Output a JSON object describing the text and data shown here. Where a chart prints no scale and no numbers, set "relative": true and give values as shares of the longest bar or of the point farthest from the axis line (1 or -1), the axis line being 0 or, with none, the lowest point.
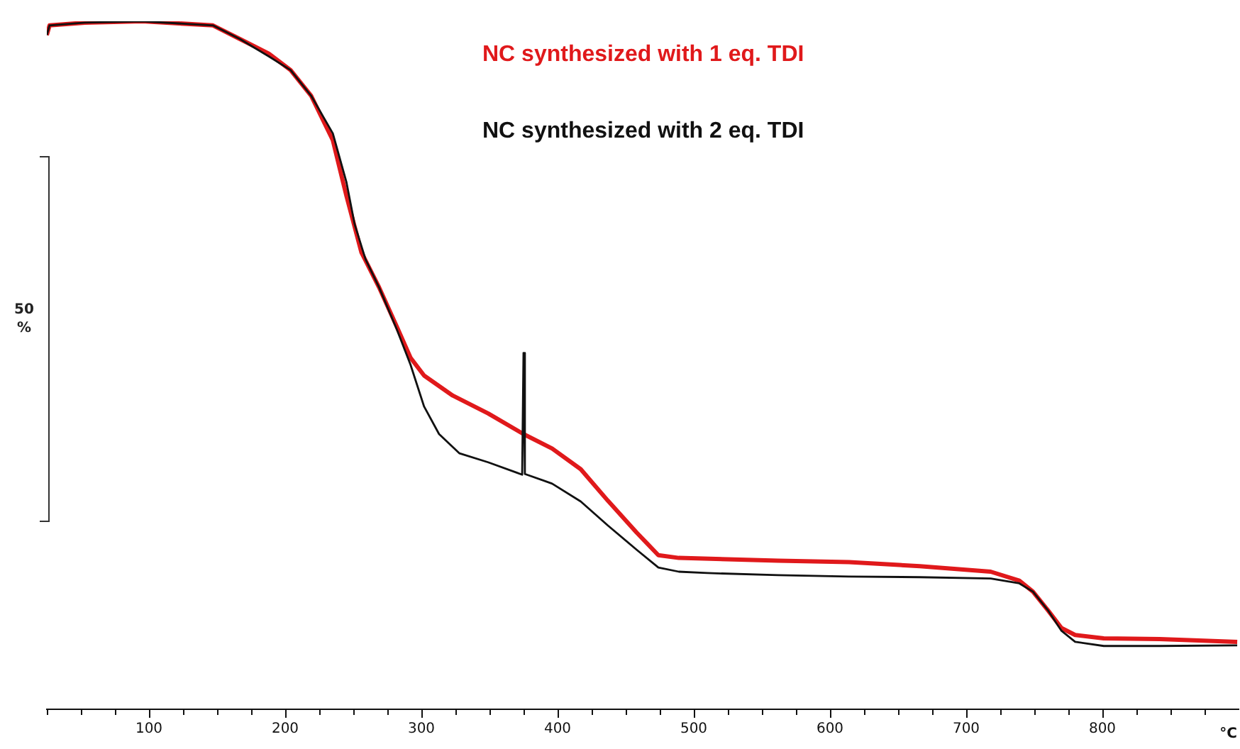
{
  "chart_data": {
    "type": "line",
    "relative": true,
    "xlabel": "°C",
    "legend": "top right",
    "grid": false,
    "marker": "none",
    "line_style": "solid",
    "annotations": [
      "50\n%"
    ],
    "xlim": [
      25,
      900
    ],
    "xticks": [
      {
        "value": 25,
        "label": null
      },
      {
        "value": 50,
        "label": null
      },
      {
        "value": 75,
        "label": null
      },
      100,
      {
        "value": 125,
        "label": null
      },
      {
        "value": 150,
        "label": null
      },
      {
        "value": 175,
        "label": null
      },
      200,
      {
        "value": 225,
        "label": null
      },
      {
        "value": 250,
        "label": null
      },
      {
        "value": 275,
        "label": null
      },
      300,
      {
        "value": 325,
        "label": null
      },
      {
        "value": 350,
        "label": null
      },
      {
        "value": 375,
        "label": null
      },
      400,
      {
        "value": 425,
        "label": null
      },
      {
        "value": 450,
        "label": null
      },
      {
        "value": 475,
        "label": null
      },
      500,
      {
        "value": 525,
        "label": null
      },
      {
        "value": 550,
        "label": null
      },
      {
        "value": 575,
        "label": null
      },
      600,
      {
        "value": 625,
        "label": null
      },
      {
        "value": 650,
        "label": null
      },
      {
        "value": 675,
        "label": null
      },
      700,
      {
        "value": 725,
        "label": null
      },
      {
        "value": 750,
        "label": null
      },
      {
        "value": 775,
        "label": null
      },
      800,
      {
        "value": 825,
        "label": null
      },
      {
        "value": 850,
        "label": null
      },
      {
        "value": 875,
        "label": null
      }
    ],
    "series": [
      {
        "name": "NC synthesized with 1 eq. TDI",
        "color": "#e0191b",
        "x": [
          25,
          27,
          53,
          95,
          147,
          167,
          188,
          204,
          219,
          235,
          245,
          256,
          269,
          282,
          292,
          302,
          323,
          349,
          375,
          396,
          417,
          437,
          458,
          474,
          489,
          562,
          614,
          666,
          718,
          739,
          749,
          760,
          770,
          780,
          801,
          842,
          899
        ],
        "values": [
          0.98,
          0.994,
          0.998,
          1,
          0.994,
          0.974,
          0.953,
          0.929,
          0.892,
          0.827,
          0.746,
          0.664,
          0.613,
          0.556,
          0.511,
          0.485,
          0.456,
          0.43,
          0.4,
          0.379,
          0.349,
          0.303,
          0.257,
          0.224,
          0.22,
          0.216,
          0.214,
          0.208,
          0.2,
          0.187,
          0.171,
          0.144,
          0.118,
          0.108,
          0.103,
          0.102,
          0.098
        ]
      },
      {
        "name": "NC synthesized with 2 eq. TDI",
        "color": "#111111",
        "x": [
          25,
          27,
          53,
          95,
          147,
          167,
          188,
          204,
          219,
          235,
          245,
          251,
          259,
          269,
          282,
          292,
          302,
          313,
          328,
          349,
          370,
          374,
          375,
          376,
          396,
          417,
          437,
          458,
          474,
          489,
          510,
          562,
          614,
          666,
          718,
          739,
          749,
          760,
          770,
          780,
          801,
          842,
          899
        ],
        "values": [
          0.98,
          0.994,
          0.998,
          1,
          0.994,
          0.974,
          0.949,
          0.929,
          0.892,
          0.837,
          0.766,
          0.705,
          0.654,
          0.613,
          0.552,
          0.501,
          0.44,
          0.4,
          0.372,
          0.359,
          0.344,
          0.341,
          0.518,
          0.342,
          0.328,
          0.302,
          0.267,
          0.232,
          0.206,
          0.2,
          0.198,
          0.195,
          0.193,
          0.192,
          0.19,
          0.183,
          0.171,
          0.144,
          0.114,
          0.098,
          0.092,
          0.092,
          0.093
        ]
      }
    ]
  }
}
